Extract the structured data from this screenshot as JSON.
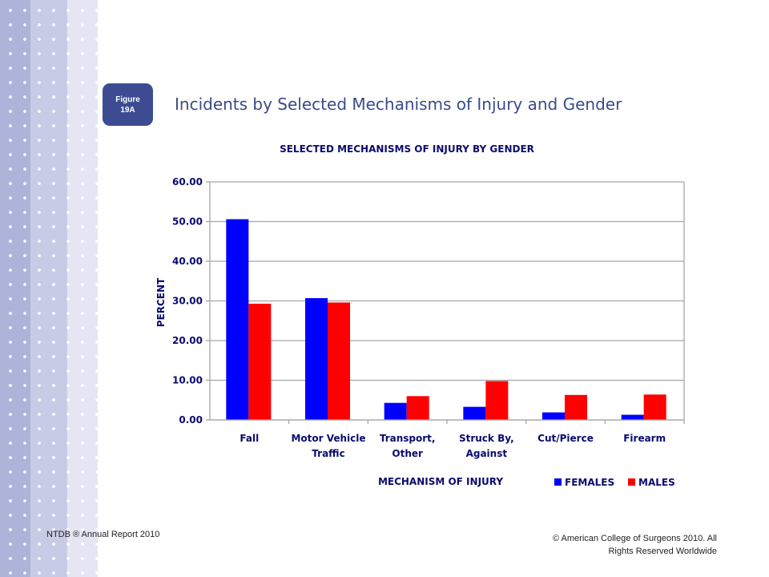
{
  "slide": {
    "badge_line1": "Figure",
    "badge_line2": "19A",
    "title": "Incidents by Selected Mechanisms of Injury and Gender",
    "footer_left": "NTDB ® Annual Report 2010",
    "footer_right_line1": "© American College of Surgeons 2010.  All",
    "footer_right_line2": "Rights Reserved Worldwide"
  },
  "colors": {
    "females": "#0000ff",
    "males": "#ff0000",
    "chart_text": "#0b0b6e",
    "title_blue": "#3b4a8a",
    "badge": "#3d4c92",
    "grid": "#a6a6a6"
  },
  "chart_data": {
    "type": "bar",
    "title": "SELECTED MECHANISMS OF INJURY BY GENDER",
    "xlabel": "MECHANISM OF INJURY",
    "ylabel": "PERCENT",
    "ylim": [
      0,
      60
    ],
    "yticks": [
      "0.00",
      "10.00",
      "20.00",
      "30.00",
      "40.00",
      "50.00",
      "60.00"
    ],
    "grid": true,
    "legend_position": "bottom-right",
    "categories": [
      [
        "Fall"
      ],
      [
        "Motor Vehicle",
        "Traffic"
      ],
      [
        "Transport,",
        "Other"
      ],
      [
        "Struck By,",
        "Against"
      ],
      [
        "Cut/Pierce"
      ],
      [
        "Firearm"
      ]
    ],
    "series": [
      {
        "name": "FEMALES",
        "color": "#0000ff",
        "values": [
          50.6,
          30.7,
          4.3,
          3.3,
          1.9,
          1.3
        ]
      },
      {
        "name": "MALES",
        "color": "#ff0000",
        "values": [
          29.3,
          29.6,
          6.0,
          9.8,
          6.3,
          6.4
        ]
      }
    ]
  }
}
